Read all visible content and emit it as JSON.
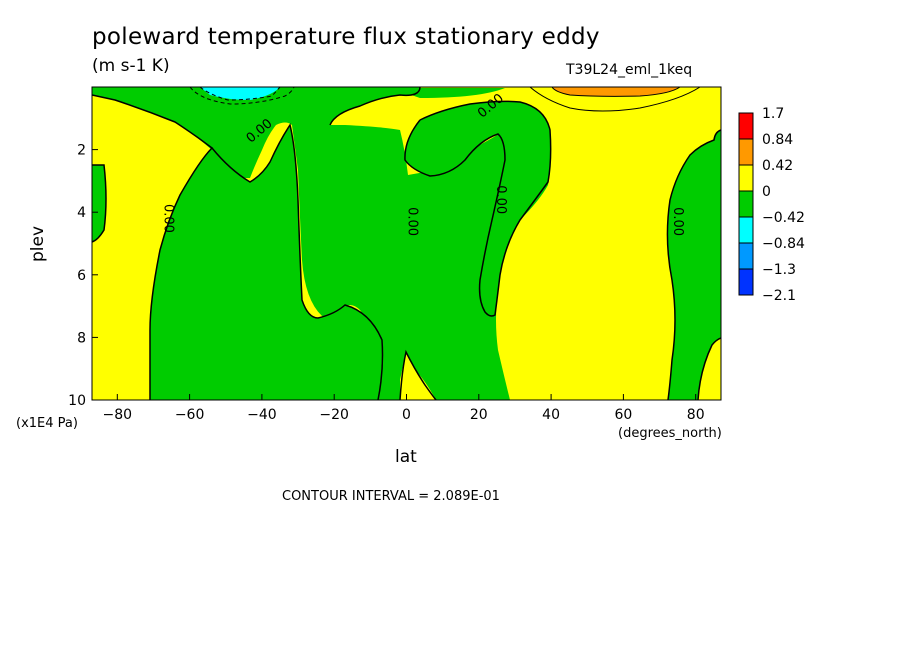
{
  "chart_data": {
    "type": "contour",
    "title": "poleward temperature flux stationary eddy",
    "units": "(m s-1 K)",
    "run_id": "T39L24_eml_1keq",
    "xlabel": "lat",
    "xunits": "(degrees_north)",
    "ylabel": "plev",
    "yunits": "(x1E4 Pa)",
    "xlim": [
      -87,
      87
    ],
    "ylim": [
      10,
      0
    ],
    "x_ticks": [
      -80,
      -60,
      -40,
      -20,
      0,
      20,
      40,
      60,
      80
    ],
    "x_tick_labels": [
      "−80",
      "−60",
      "−40",
      "−20",
      "0",
      "20",
      "40",
      "60",
      "80"
    ],
    "y_ticks": [
      2,
      4,
      6,
      8,
      10
    ],
    "y_tick_labels": [
      "2",
      "4",
      "6",
      "8",
      "10"
    ],
    "contour_interval": "CONTOUR INTERVAL = 2.089E-01",
    "contour_labels": [
      {
        "text": "0.00",
        "lat": -67,
        "plev": 4.2
      },
      {
        "text": "0.00",
        "lat": -40,
        "plev": 1.5
      },
      {
        "text": "0.00",
        "lat": 0.5,
        "plev": 4.3
      },
      {
        "text": "0.00",
        "lat": 25,
        "plev": 3.6
      },
      {
        "text": "0.00",
        "lat": 24,
        "plev": 0.7
      },
      {
        "text": "0.00",
        "lat": 74,
        "plev": 4.3
      }
    ],
    "colorbar": {
      "levels": [
        "1.7",
        "0.84",
        "0.42",
        "0",
        "−0.42",
        "−0.84",
        "−1.3",
        "−2.1"
      ],
      "colors": [
        "#ff0000",
        "#ff9900",
        "#ffff00",
        "#00cc00",
        "#00ffff",
        "#0099ff",
        "#0033ff"
      ]
    },
    "fill_colors": {
      "positive_low": "#ffff00",
      "negative_low": "#00cc00",
      "positive_mid": "#ff9900",
      "negative_mid": "#00ffff"
    },
    "regions": [
      {
        "sign": "negative",
        "description": "southern mid-latitude region",
        "lat_range": [
          -72,
          -3
        ],
        "plev_range": [
          0.8,
          10
        ]
      },
      {
        "sign": "negative",
        "description": "tropical northern tongue",
        "lat_range": [
          5,
          45
        ],
        "plev_range": [
          0.6,
          10
        ]
      },
      {
        "sign": "negative",
        "description": "northern high-latitude region",
        "lat_range": [
          73,
          87
        ],
        "plev_range": [
          1.9,
          10
        ]
      },
      {
        "sign": "negative",
        "description": "upper-level minimum",
        "lat": -50,
        "plev": 0.2
      },
      {
        "sign": "positive",
        "description": "upper-level maximum",
        "lat": 52,
        "plev": 0.1
      }
    ]
  }
}
